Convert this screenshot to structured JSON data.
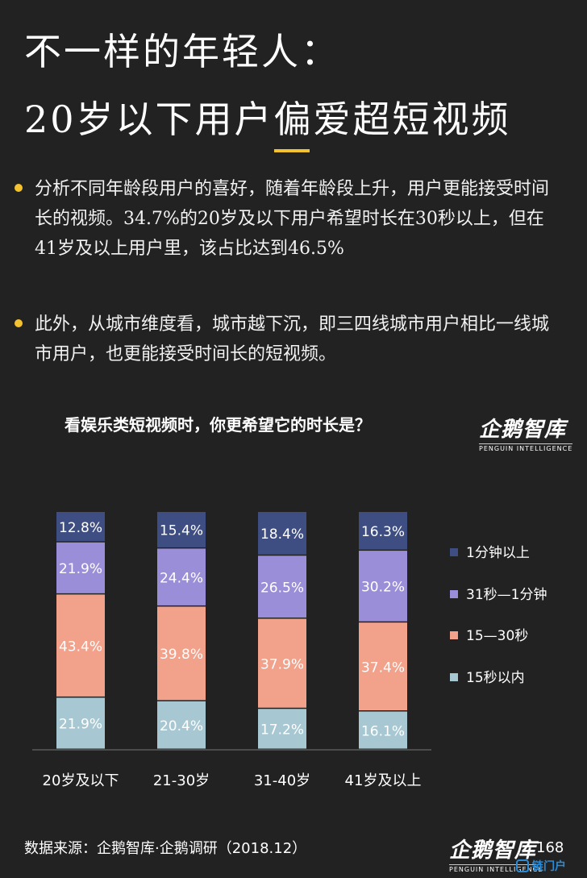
{
  "header": {
    "title_line1": "不一样的年轻人：",
    "title_line2": "20岁以下用户偏爱超短视频"
  },
  "bullets": [
    "分析不同年龄段用户的喜好，随着年龄段上升，用户更能接受时间长的视频。34.7%的20岁及以下用户希望时长在30秒以上，但在41岁及以上用户里，该占比达到46.5%",
    "此外，从城市维度看，城市越下沉，即三四线城市用户相比一线城市用户，也更能接受时间长的短视频。"
  ],
  "logo": {
    "name": "企鹅智库",
    "sub": "PENGUIN INTELLIGENCE"
  },
  "colors": {
    "accent": "#f2c230",
    "within15": "#a7c8d2",
    "s15_30": "#f2a18b",
    "s31_60": "#9b8ed8",
    "over60": "#3f4e82"
  },
  "chart_data": {
    "type": "bar",
    "stacked": true,
    "title": "看娱乐类短视频时，你更希望它的时长是？",
    "categories": [
      "20岁及以下",
      "21-30岁",
      "31-40岁",
      "41岁及以上"
    ],
    "series": [
      {
        "name": "15秒以内",
        "values": [
          21.9,
          20.4,
          17.2,
          16.1
        ],
        "labels": [
          "21.9%",
          "20.4%",
          "17.2%",
          "16.1%"
        ]
      },
      {
        "name": "15—30秒",
        "values": [
          43.4,
          39.8,
          37.9,
          37.4
        ],
        "labels": [
          "43.4%",
          "39.8%",
          "37.9%",
          "37.4%"
        ]
      },
      {
        "name": "31秒—1分钟",
        "values": [
          21.9,
          24.4,
          26.5,
          30.2
        ],
        "labels": [
          "21.9%",
          "24.4%",
          "26.5%",
          "30.2%"
        ]
      },
      {
        "name": "1分钟以上",
        "values": [
          12.8,
          15.4,
          18.4,
          16.3
        ],
        "labels": [
          "12.8%",
          "15.4%",
          "18.4%",
          "16.3%"
        ]
      }
    ],
    "legend_order": [
      3,
      2,
      1,
      0
    ],
    "legend_position": "right",
    "ylim": [
      0,
      100
    ],
    "grid": false
  },
  "footer": {
    "source": "数据来源：企鹅智库·企鹅调研（2018.12）",
    "page_number": "168",
    "watermark": "链门户"
  }
}
